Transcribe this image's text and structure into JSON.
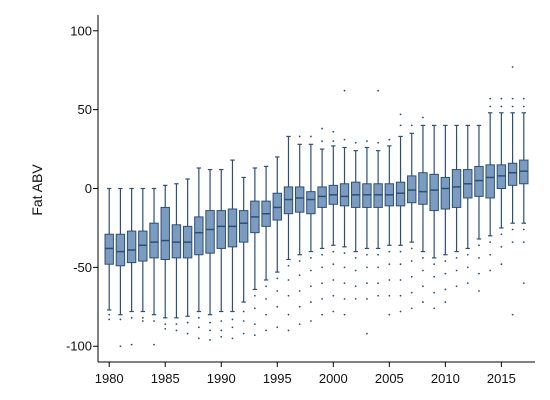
{
  "chart_data": {
    "type": "box",
    "title": "",
    "xlabel": "",
    "ylabel": "Fat ABV",
    "ylim": [
      -110,
      110
    ],
    "xlim": [
      1979,
      2018
    ],
    "y_ticks": [
      -100,
      -50,
      0,
      50,
      100
    ],
    "x_ticks": [
      1980,
      1985,
      1990,
      1995,
      2000,
      2005,
      2010,
      2015
    ],
    "grid": false,
    "legend": "none",
    "colors": {
      "box_fill": "#7b9cc0",
      "box_stroke": "#2e4f73",
      "outlier": "#2e4f73"
    },
    "boxes": [
      {
        "year": 1980,
        "q1": -48,
        "median": -38,
        "q3": -29,
        "whisker_low": -77,
        "whisker_high": 0,
        "outliers": [
          -80,
          -83
        ]
      },
      {
        "year": 1981,
        "q1": -49,
        "median": -40,
        "q3": -29,
        "whisker_low": -80,
        "whisker_high": 0,
        "outliers": [
          -83,
          -100
        ]
      },
      {
        "year": 1982,
        "q1": -47,
        "median": -39,
        "q3": -27,
        "whisker_low": -78,
        "whisker_high": 0,
        "outliers": [
          -82,
          -99
        ]
      },
      {
        "year": 1983,
        "q1": -46,
        "median": -36,
        "q3": -27,
        "whisker_low": -78,
        "whisker_high": 0,
        "outliers": [
          -82,
          -84
        ]
      },
      {
        "year": 1984,
        "q1": -44,
        "median": -34,
        "q3": -22,
        "whisker_low": -80,
        "whisker_high": 0,
        "outliers": [
          -84,
          -99
        ]
      },
      {
        "year": 1985,
        "q1": -45,
        "median": -33,
        "q3": -12,
        "whisker_low": -82,
        "whisker_high": 2,
        "outliers": [
          -86,
          -89
        ]
      },
      {
        "year": 1986,
        "q1": -44,
        "median": -34,
        "q3": -23,
        "whisker_low": -82,
        "whisker_high": 3,
        "outliers": [
          -86,
          -90
        ]
      },
      {
        "year": 1987,
        "q1": -44,
        "median": -34,
        "q3": -24,
        "whisker_low": -81,
        "whisker_high": 6,
        "outliers": [
          -85,
          -92
        ]
      },
      {
        "year": 1988,
        "q1": -42,
        "median": -28,
        "q3": -18,
        "whisker_low": -78,
        "whisker_high": 13,
        "outliers": [
          -82,
          -88,
          -95
        ]
      },
      {
        "year": 1989,
        "q1": -41,
        "median": -26,
        "q3": -14,
        "whisker_low": -80,
        "whisker_high": 12,
        "outliers": [
          -85,
          -90,
          -96
        ]
      },
      {
        "year": 1990,
        "q1": -38,
        "median": -24,
        "q3": -14,
        "whisker_low": -78,
        "whisker_high": 12,
        "outliers": [
          -84,
          -90,
          -94
        ]
      },
      {
        "year": 1991,
        "q1": -37,
        "median": -24,
        "q3": -13,
        "whisker_low": -78,
        "whisker_high": 18,
        "outliers": [
          -83,
          -88,
          -95
        ]
      },
      {
        "year": 1992,
        "q1": -34,
        "median": -22,
        "q3": -14,
        "whisker_low": -72,
        "whisker_high": 7,
        "outliers": [
          -78,
          -84,
          -92
        ]
      },
      {
        "year": 1993,
        "q1": -28,
        "median": -18,
        "q3": -8,
        "whisker_low": -64,
        "whisker_high": 13,
        "outliers": [
          -68,
          -76,
          -86,
          -93
        ]
      },
      {
        "year": 1994,
        "q1": -24,
        "median": -16,
        "q3": -8,
        "whisker_low": -58,
        "whisker_high": 14,
        "outliers": [
          -62,
          -70,
          -80,
          -90
        ]
      },
      {
        "year": 1995,
        "q1": -20,
        "median": -12,
        "q3": -3,
        "whisker_low": -53,
        "whisker_high": 20,
        "outliers": [
          -57,
          -65,
          -75,
          -88
        ]
      },
      {
        "year": 1996,
        "q1": -16,
        "median": -7,
        "q3": 1,
        "whisker_low": -45,
        "whisker_high": 33,
        "outliers": [
          -49,
          -58,
          -68,
          -80,
          -90
        ]
      },
      {
        "year": 1997,
        "q1": -15,
        "median": -6,
        "q3": 1,
        "whisker_low": -42,
        "whisker_high": 28,
        "outliers": [
          -46,
          -55,
          -65,
          -75,
          -86,
          33
        ]
      },
      {
        "year": 1998,
        "q1": -16,
        "median": -7,
        "q3": -2,
        "whisker_low": -40,
        "whisker_high": 28,
        "outliers": [
          -44,
          -52,
          -62,
          -72,
          -84,
          33
        ]
      },
      {
        "year": 1999,
        "q1": -12,
        "median": -5,
        "q3": 1,
        "whisker_low": -38,
        "whisker_high": 25,
        "outliers": [
          -42,
          -50,
          -60,
          -70,
          -80,
          30,
          38
        ]
      },
      {
        "year": 2000,
        "q1": -10,
        "median": -4,
        "q3": 2,
        "whisker_low": -36,
        "whisker_high": 27,
        "outliers": [
          -40,
          -48,
          -58,
          -68,
          -78,
          30,
          36
        ]
      },
      {
        "year": 2001,
        "q1": -11,
        "median": -5,
        "q3": 3,
        "whisker_low": -37,
        "whisker_high": 26,
        "outliers": [
          -41,
          -50,
          -60,
          -70,
          -80,
          31,
          62
        ]
      },
      {
        "year": 2002,
        "q1": -12,
        "median": -4,
        "q3": 4,
        "whisker_low": -40,
        "whisker_high": 24,
        "outliers": [
          -44,
          -52,
          -62,
          -70,
          29
        ]
      },
      {
        "year": 2003,
        "q1": -12,
        "median": -4,
        "q3": 3,
        "whisker_low": -38,
        "whisker_high": 26,
        "outliers": [
          -42,
          -50,
          -60,
          -70,
          -92,
          30
        ]
      },
      {
        "year": 2004,
        "q1": -12,
        "median": -4,
        "q3": 3,
        "whisker_low": -38,
        "whisker_high": 24,
        "outliers": [
          -42,
          -50,
          -60,
          -68,
          29,
          62
        ]
      },
      {
        "year": 2005,
        "q1": -11,
        "median": -4,
        "q3": 3,
        "whisker_low": -36,
        "whisker_high": 27,
        "outliers": [
          -40,
          -48,
          -58,
          -68,
          -80,
          31
        ]
      },
      {
        "year": 2006,
        "q1": -11,
        "median": -3,
        "q3": 4,
        "whisker_low": -36,
        "whisker_high": 33,
        "outliers": [
          -40,
          -48,
          -58,
          -68,
          -78,
          40,
          47
        ]
      },
      {
        "year": 2007,
        "q1": -9,
        "median": -1,
        "q3": 8,
        "whisker_low": -34,
        "whisker_high": 35,
        "outliers": [
          -38,
          -46,
          -56,
          -66,
          -76,
          40
        ]
      },
      {
        "year": 2008,
        "q1": -10,
        "median": -2,
        "q3": 10,
        "whisker_low": -40,
        "whisker_high": 40,
        "outliers": [
          -44,
          -52,
          -62,
          -72,
          45
        ]
      },
      {
        "year": 2009,
        "q1": -14,
        "median": -1,
        "q3": 9,
        "whisker_low": -44,
        "whisker_high": 40,
        "outliers": [
          -48,
          -56,
          -66,
          -76
        ]
      },
      {
        "year": 2010,
        "q1": -13,
        "median": 0,
        "q3": 7,
        "whisker_low": -42,
        "whisker_high": 40,
        "outliers": [
          -46,
          -54,
          -64,
          -72
        ]
      },
      {
        "year": 2011,
        "q1": -12,
        "median": 1,
        "q3": 12,
        "whisker_low": -40,
        "whisker_high": 40,
        "outliers": [
          -44,
          -52,
          -62
        ]
      },
      {
        "year": 2012,
        "q1": -6,
        "median": 3,
        "q3": 12,
        "whisker_low": -38,
        "whisker_high": 40,
        "outliers": [
          -42,
          -50,
          -60
        ]
      },
      {
        "year": 2013,
        "q1": -5,
        "median": 5,
        "q3": 14,
        "whisker_low": -32,
        "whisker_high": 40,
        "outliers": [
          -36,
          -44,
          -54,
          -65
        ]
      },
      {
        "year": 2014,
        "q1": -6,
        "median": 7,
        "q3": 15,
        "whisker_low": -30,
        "whisker_high": 48,
        "outliers": [
          -34,
          -42,
          -52,
          52,
          57
        ]
      },
      {
        "year": 2015,
        "q1": 0,
        "median": 8,
        "q3": 15,
        "whisker_low": -25,
        "whisker_high": 48,
        "outliers": [
          -29,
          -37,
          -48,
          52,
          57
        ]
      },
      {
        "year": 2016,
        "q1": 2,
        "median": 10,
        "q3": 16,
        "whisker_low": -22,
        "whisker_high": 48,
        "outliers": [
          -26,
          -34,
          -80,
          52,
          57,
          77
        ]
      },
      {
        "year": 2017,
        "q1": 3,
        "median": 11,
        "q3": 18,
        "whisker_low": -22,
        "whisker_high": 48,
        "outliers": [
          -26,
          -34,
          -60,
          52,
          57
        ]
      }
    ]
  }
}
